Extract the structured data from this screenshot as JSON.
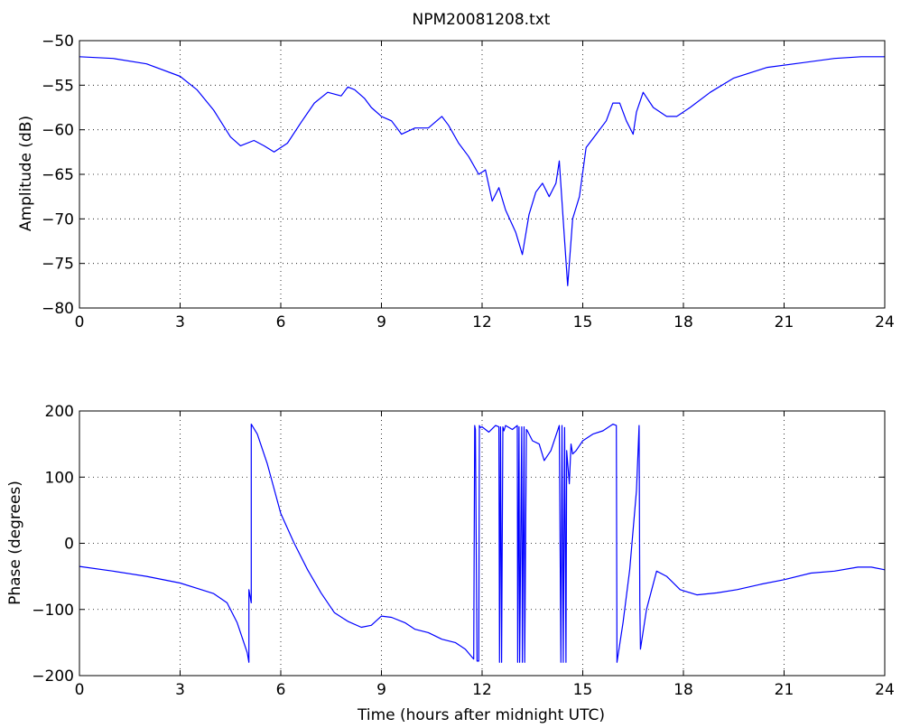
{
  "chart_data": [
    {
      "type": "line",
      "title": "NPM20081208.txt",
      "xlabel": "",
      "ylabel": "Amplitude (dB)",
      "xlim": [
        0,
        24
      ],
      "ylim": [
        -80,
        -50
      ],
      "x_ticks": [
        "0",
        "3",
        "6",
        "9",
        "12",
        "15",
        "18",
        "21",
        "24"
      ],
      "y_ticks": [
        "-50",
        "-55",
        "-60",
        "-65",
        "-70",
        "-75",
        "-80"
      ],
      "grid": true,
      "line_color": "#0000ff",
      "series": [
        {
          "x": [
            0,
            1,
            2,
            3,
            3.5,
            4,
            4.5,
            4.8,
            5.2,
            5.5,
            5.8,
            6.2,
            6.6,
            7.0,
            7.4,
            7.8,
            8.0,
            8.2,
            8.5,
            8.7,
            9.0,
            9.3,
            9.6,
            10.0,
            10.4,
            10.8,
            11.0,
            11.3,
            11.6,
            11.9,
            12.1,
            12.3,
            12.5,
            12.7,
            13.0,
            13.2,
            13.4,
            13.6,
            13.8,
            14.0,
            14.2,
            14.3,
            14.45,
            14.55,
            14.7,
            14.9,
            15.1,
            15.4,
            15.7,
            15.9,
            16.1,
            16.3,
            16.5,
            16.6,
            16.8,
            17.1,
            17.5,
            17.8,
            18.2,
            18.8,
            19.5,
            20.5,
            21.5,
            22.5,
            23.3,
            24
          ],
          "y": [
            -51.8,
            -52.0,
            -52.6,
            -54.0,
            -55.5,
            -57.8,
            -60.8,
            -61.8,
            -61.2,
            -61.8,
            -62.5,
            -61.5,
            -59.2,
            -57.0,
            -55.8,
            -56.2,
            -55.2,
            -55.5,
            -56.5,
            -57.5,
            -58.5,
            -59.0,
            -60.5,
            -59.8,
            -59.8,
            -58.5,
            -59.5,
            -61.5,
            -63.0,
            -65.0,
            -64.5,
            -68.0,
            -66.5,
            -69.0,
            -71.5,
            -74.0,
            -69.5,
            -67.0,
            -66.0,
            -67.5,
            -66.0,
            -63.5,
            -72.0,
            -77.5,
            -70.0,
            -67.5,
            -62.0,
            -60.5,
            -59.0,
            -57.0,
            -57.0,
            -59.0,
            -60.5,
            -58.0,
            -55.8,
            -57.5,
            -58.5,
            -58.5,
            -57.5,
            -55.8,
            -54.2,
            -53.0,
            -52.5,
            -52.0,
            -51.8,
            -51.8
          ]
        }
      ]
    },
    {
      "type": "line",
      "title": "",
      "xlabel": "Time (hours after midnight UTC)",
      "ylabel": "Phase (degrees)",
      "xlim": [
        0,
        24
      ],
      "ylim": [
        -200,
        200
      ],
      "x_ticks": [
        "0",
        "3",
        "6",
        "9",
        "12",
        "15",
        "18",
        "21",
        "24"
      ],
      "y_ticks": [
        "200",
        "100",
        "0",
        "-100",
        "-200"
      ],
      "grid": true,
      "line_color": "#0000ff",
      "series": [
        {
          "x": [
            0,
            1,
            2,
            3,
            3.5,
            4,
            4.4,
            4.7,
            5.0,
            5.05,
            5.05,
            5.12,
            5.12,
            5.3,
            5.6,
            6.0,
            6.4,
            6.8,
            7.2,
            7.6,
            8.0,
            8.4,
            8.7,
            9.0,
            9.3,
            9.7,
            10.0,
            10.4,
            10.8,
            11.2,
            11.5,
            11.75,
            11.78,
            11.8,
            11.85,
            11.9,
            11.92,
            11.95,
            12.0,
            12.2,
            12.4,
            12.5,
            12.52,
            12.55,
            12.58,
            12.62,
            12.65,
            12.7,
            12.9,
            13.05,
            13.06,
            13.1,
            13.12,
            13.18,
            13.2,
            13.25,
            13.27,
            13.32,
            13.35,
            13.5,
            13.7,
            13.85,
            14.05,
            14.3,
            14.35,
            14.38,
            14.42,
            14.46,
            14.5,
            14.52,
            14.6,
            14.65,
            14.7,
            14.8,
            15.0,
            15.3,
            15.6,
            15.9,
            16.0,
            16.02,
            16.2,
            16.4,
            16.6,
            16.68,
            16.7,
            16.72,
            16.9,
            17.2,
            17.5,
            17.9,
            18.4,
            19.0,
            19.6,
            20.3,
            21.0,
            21.8,
            22.5,
            23.2,
            23.6,
            24
          ],
          "y": [
            -35,
            -42,
            -50,
            -60,
            -68,
            -76,
            -90,
            -120,
            -165,
            -180,
            -70,
            -90,
            180,
            165,
            120,
            45,
            0,
            -40,
            -75,
            -105,
            -118,
            -127,
            -124,
            -110,
            -112,
            -120,
            -130,
            -135,
            -145,
            -150,
            -160,
            -175,
            178,
            172,
            -178,
            -178,
            178,
            175,
            176,
            168,
            178,
            176,
            -180,
            176,
            -180,
            176,
            170,
            178,
            172,
            178,
            -180,
            176,
            -180,
            176,
            -180,
            176,
            -180,
            172,
            170,
            155,
            150,
            125,
            140,
            178,
            -180,
            178,
            -180,
            175,
            -180,
            140,
            90,
            150,
            135,
            140,
            155,
            165,
            170,
            180,
            178,
            -180,
            -120,
            -40,
            80,
            178,
            -90,
            -160,
            -100,
            -42,
            -50,
            -70,
            -78,
            -75,
            -70,
            -62,
            -55,
            -45,
            -42,
            -36,
            -36,
            -40
          ]
        }
      ]
    }
  ]
}
